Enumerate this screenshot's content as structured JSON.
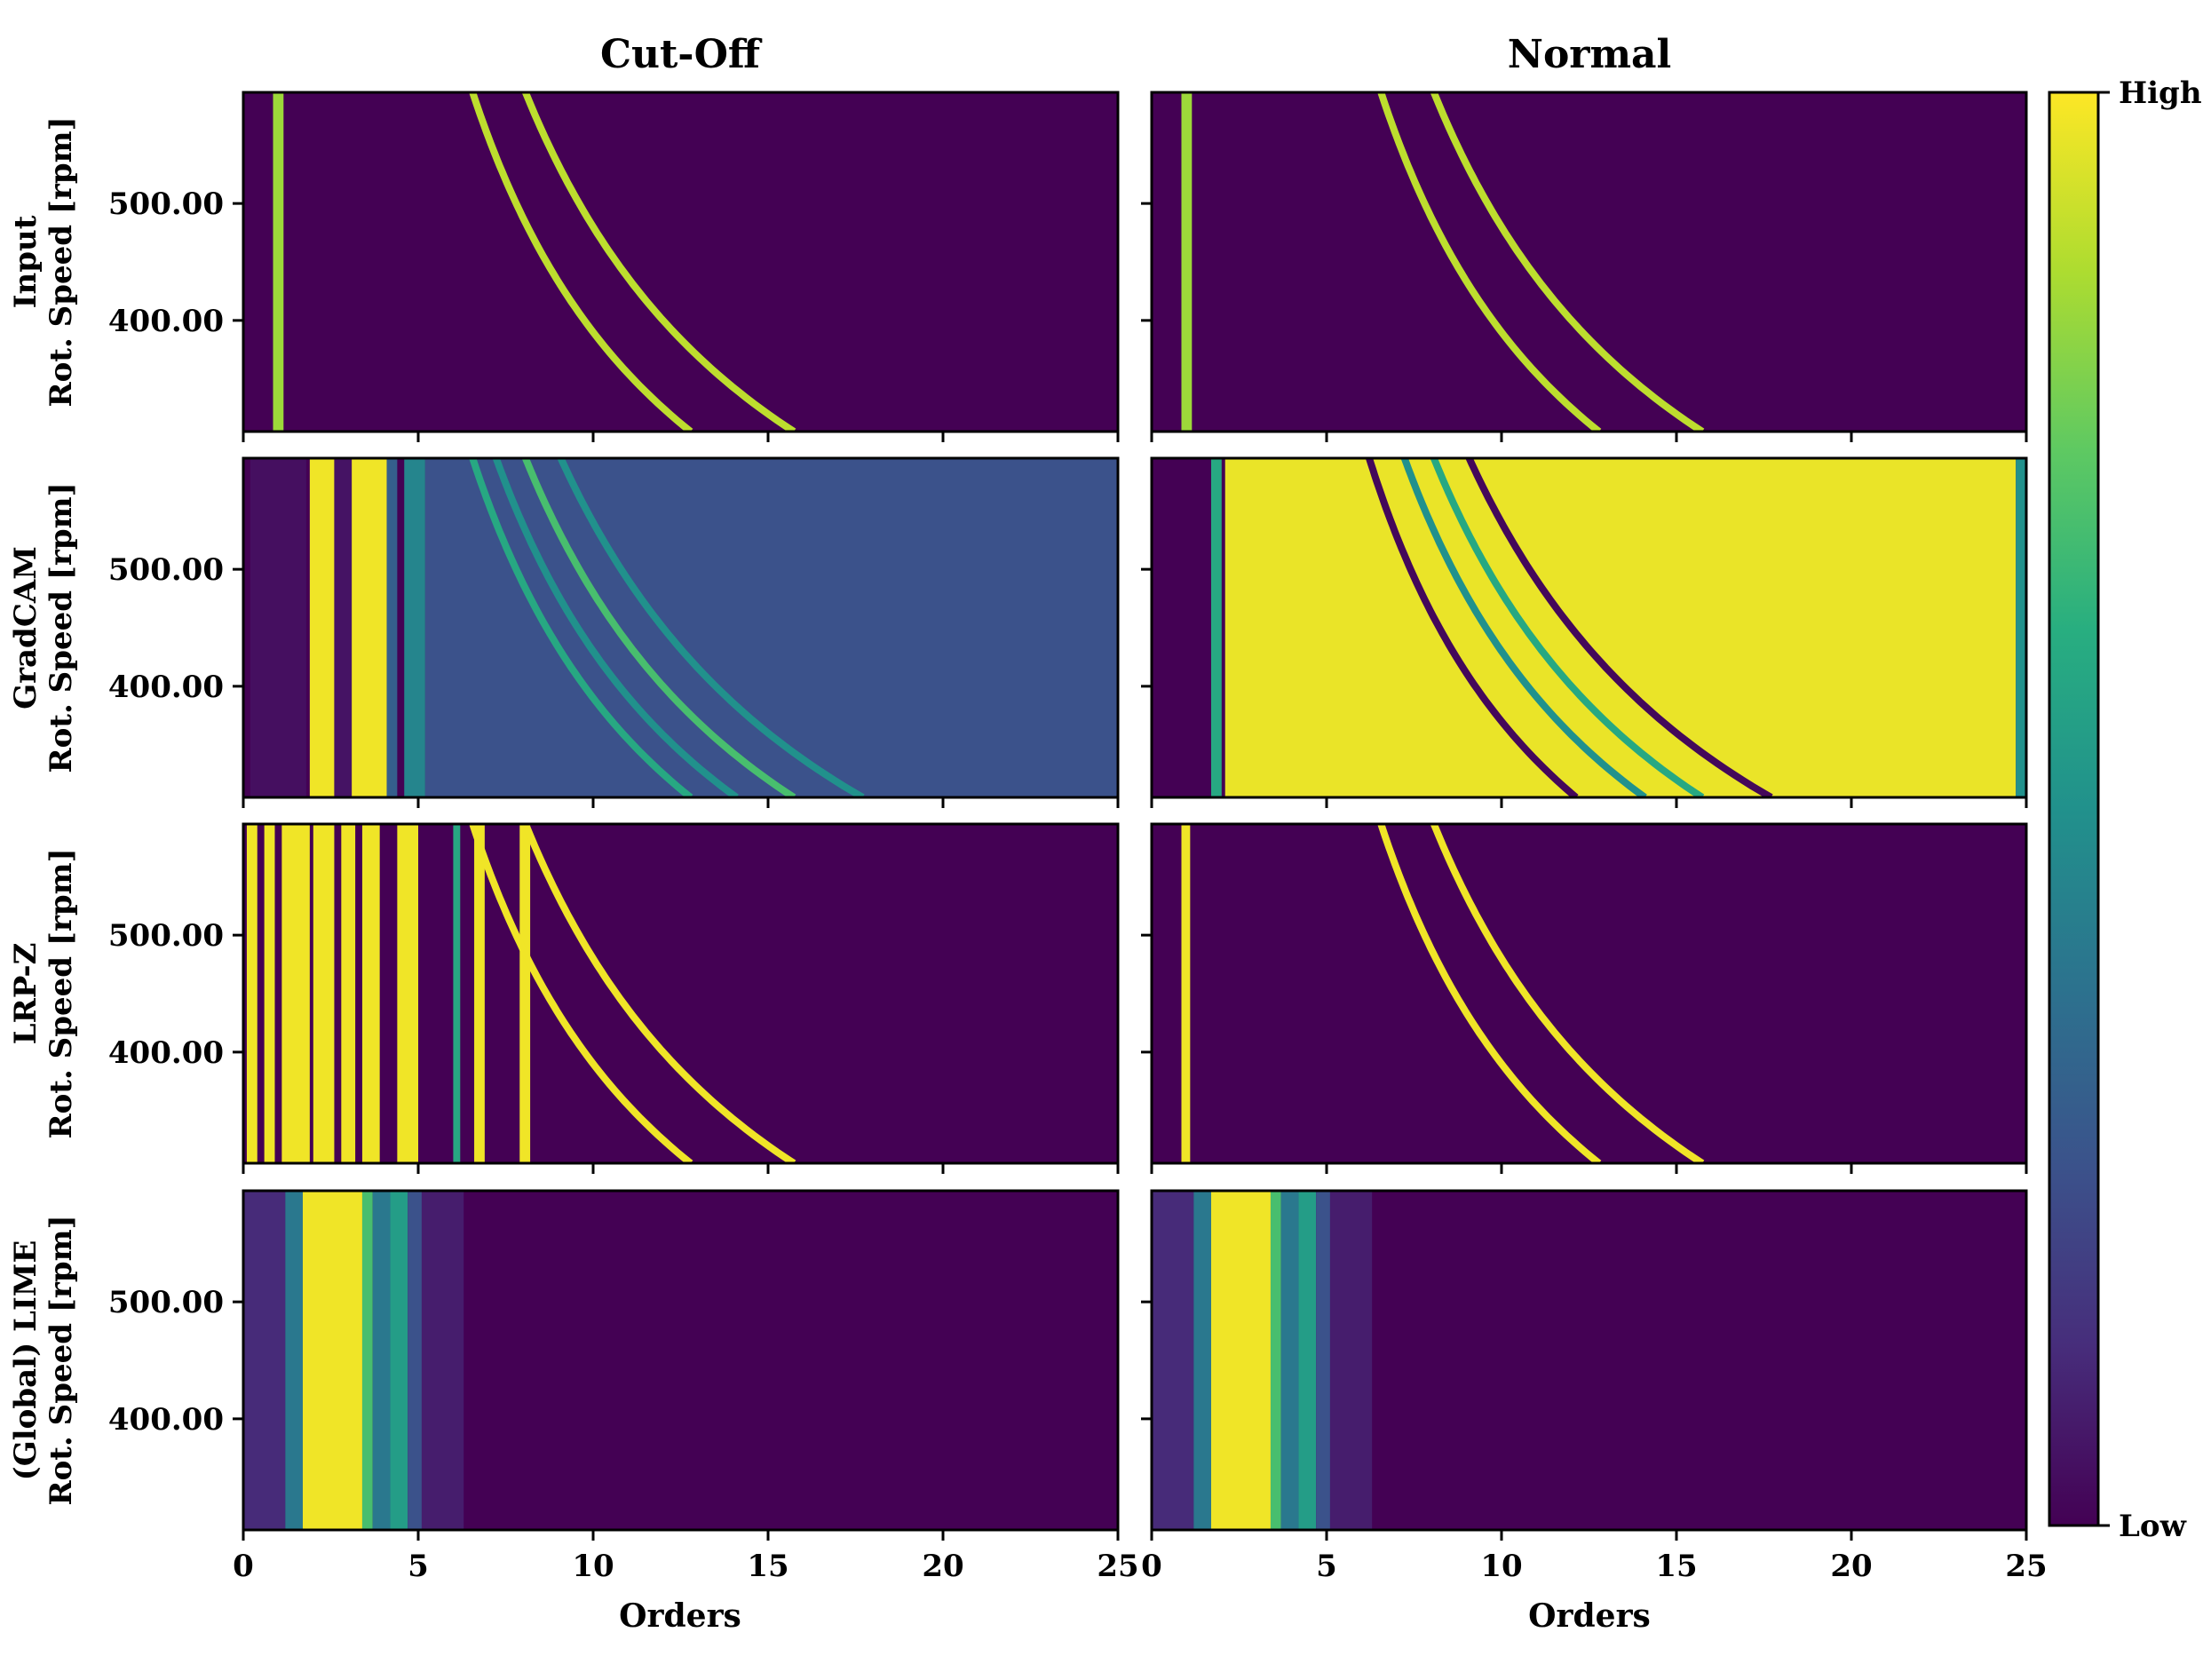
{
  "chart_data": {
    "type": "heatmap",
    "column_titles": [
      "Cut-Off",
      "Normal"
    ],
    "row_labels": [
      {
        "method": "Input",
        "ylabel": "Rot. Speed [rpm]"
      },
      {
        "method": "GradCAM",
        "ylabel": "Rot. Speed [rpm]"
      },
      {
        "method": "LRP-Z",
        "ylabel": "Rot. Speed [rpm]"
      },
      {
        "method": "(Global) LIME",
        "ylabel": "Rot. Speed [rpm]"
      }
    ],
    "xlabel": "Orders",
    "xlim": [
      0,
      25
    ],
    "x_ticks": [
      0,
      5,
      10,
      15,
      20,
      25
    ],
    "x_tick_labels": [
      "0",
      "5",
      "10",
      "15",
      "20",
      "25"
    ],
    "ylim": [
      305,
      595
    ],
    "y_ticks": [
      400,
      500
    ],
    "y_tick_labels": [
      "400.00",
      "500.00"
    ],
    "colormap": "viridis",
    "colorbar": {
      "high_label": "High",
      "low_label": "Low"
    },
    "panels": [
      {
        "row": "Input",
        "column": "Cut-Off",
        "vertical_bands": [
          {
            "x0": 0.85,
            "x1": 1.15,
            "level": 0.85
          }
        ],
        "order_curves": [
          {
            "c": 3900,
            "level": 0.9
          },
          {
            "c": 4800,
            "level": 0.9
          }
        ]
      },
      {
        "row": "Input",
        "column": "Normal",
        "vertical_bands": [
          {
            "x0": 0.85,
            "x1": 1.15,
            "level": 0.85
          }
        ],
        "order_curves": [
          {
            "c": 3900,
            "level": 0.9
          },
          {
            "c": 4800,
            "level": 0.9
          }
        ]
      },
      {
        "row": "GradCAM",
        "column": "Cut-Off",
        "vertical_bands": [
          {
            "x0": 0.2,
            "x1": 1.8,
            "level": 0.04
          },
          {
            "x0": 1.9,
            "x1": 2.6,
            "level": 0.98
          },
          {
            "x0": 2.6,
            "x1": 3.1,
            "level": 0.05
          },
          {
            "x0": 3.1,
            "x1": 4.1,
            "level": 0.98
          },
          {
            "x0": 4.1,
            "x1": 4.4,
            "level": 0.3
          },
          {
            "x0": 4.6,
            "x1": 5.2,
            "level": 0.45
          },
          {
            "x0": 5.2,
            "x1": 25,
            "level": 0.25
          }
        ],
        "order_curves": [
          {
            "c": 3900,
            "level": 0.6
          },
          {
            "c": 4300,
            "level": 0.5
          },
          {
            "c": 4800,
            "level": 0.7
          },
          {
            "c": 5400,
            "level": 0.5
          }
        ]
      },
      {
        "row": "GradCAM",
        "column": "Normal",
        "vertical_bands": [
          {
            "x0": 1.7,
            "x1": 2.0,
            "level": 0.6
          },
          {
            "x0": 2.1,
            "x1": 24.7,
            "level": 0.97
          },
          {
            "x0": 24.7,
            "x1": 25,
            "level": 0.5
          }
        ],
        "order_curves": [
          {
            "c": 3700,
            "level": 0.02
          },
          {
            "c": 4300,
            "level": 0.5
          },
          {
            "c": 4800,
            "level": 0.6
          },
          {
            "c": 5400,
            "level": 0.02
          }
        ]
      },
      {
        "row": "LRP-Z",
        "column": "Cut-Off",
        "vertical_bands": [
          {
            "x0": 0.1,
            "x1": 0.4,
            "level": 0.98
          },
          {
            "x0": 0.6,
            "x1": 0.9,
            "level": 0.98
          },
          {
            "x0": 1.1,
            "x1": 1.9,
            "level": 0.98
          },
          {
            "x0": 2.0,
            "x1": 2.6,
            "level": 0.98
          },
          {
            "x0": 2.8,
            "x1": 3.2,
            "level": 0.98
          },
          {
            "x0": 3.4,
            "x1": 3.9,
            "level": 0.98
          },
          {
            "x0": 4.4,
            "x1": 5.0,
            "level": 0.98
          },
          {
            "x0": 6.0,
            "x1": 6.2,
            "level": 0.6
          },
          {
            "x0": 6.6,
            "x1": 6.9,
            "level": 0.98
          },
          {
            "x0": 7.9,
            "x1": 8.2,
            "level": 0.98
          }
        ],
        "order_curves": [
          {
            "c": 3900,
            "level": 0.98
          },
          {
            "c": 4800,
            "level": 0.98
          }
        ]
      },
      {
        "row": "LRP-Z",
        "column": "Normal",
        "vertical_bands": [
          {
            "x0": 0.85,
            "x1": 1.1,
            "level": 0.98
          }
        ],
        "order_curves": [
          {
            "c": 3900,
            "level": 0.98
          },
          {
            "c": 4800,
            "level": 0.98
          }
        ]
      },
      {
        "row": "(Global) LIME",
        "column": "Cut-Off",
        "vertical_bands": [
          {
            "x0": 0,
            "x1": 1.2,
            "level": 0.12
          },
          {
            "x0": 1.2,
            "x1": 1.7,
            "level": 0.4
          },
          {
            "x0": 1.7,
            "x1": 3.4,
            "level": 0.98
          },
          {
            "x0": 3.4,
            "x1": 3.7,
            "level": 0.7
          },
          {
            "x0": 3.7,
            "x1": 4.2,
            "level": 0.4
          },
          {
            "x0": 4.2,
            "x1": 4.7,
            "level": 0.55
          },
          {
            "x0": 4.7,
            "x1": 5.1,
            "level": 0.25
          },
          {
            "x0": 5.1,
            "x1": 6.3,
            "level": 0.08
          }
        ],
        "order_curves": []
      },
      {
        "row": "(Global) LIME",
        "column": "Normal",
        "vertical_bands": [
          {
            "x0": 0,
            "x1": 1.2,
            "level": 0.12
          },
          {
            "x0": 1.2,
            "x1": 1.7,
            "level": 0.4
          },
          {
            "x0": 1.7,
            "x1": 3.4,
            "level": 0.98
          },
          {
            "x0": 3.4,
            "x1": 3.7,
            "level": 0.7
          },
          {
            "x0": 3.7,
            "x1": 4.2,
            "level": 0.4
          },
          {
            "x0": 4.2,
            "x1": 4.7,
            "level": 0.55
          },
          {
            "x0": 4.7,
            "x1": 5.1,
            "level": 0.25
          },
          {
            "x0": 5.1,
            "x1": 6.3,
            "level": 0.08
          }
        ],
        "order_curves": []
      }
    ],
    "colors": {
      "low": "#440154",
      "mid": "#21918c",
      "high": "#fde725"
    }
  }
}
